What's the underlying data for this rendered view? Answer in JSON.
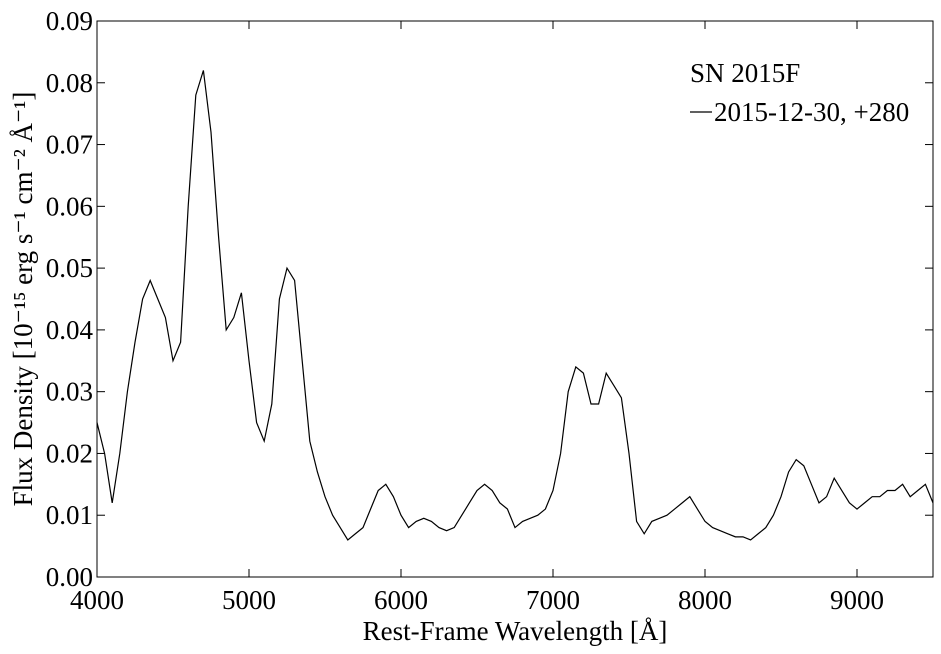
{
  "chart_data": {
    "type": "line",
    "xlabel": "Rest-Frame Wavelength [Å]",
    "ylabel": "Flux Density [10⁻¹⁵ erg s⁻¹ cm⁻² Å⁻¹]",
    "legend_title": "SN 2015F",
    "legend_position": "upper right",
    "xlim": [
      4000,
      9500
    ],
    "xticks": [
      4000,
      5000,
      6000,
      7000,
      8000,
      9000
    ],
    "ylim": [
      0,
      0.09
    ],
    "yticks": [
      {
        "value": 0,
        "label": "0.00"
      },
      0.01,
      0.02,
      0.03,
      0.04,
      0.05,
      0.06,
      0.07,
      0.08,
      0.09
    ],
    "x": [
      4000,
      4050,
      4100,
      4150,
      4200,
      4250,
      4300,
      4350,
      4400,
      4450,
      4500,
      4550,
      4600,
      4650,
      4700,
      4750,
      4800,
      4850,
      4900,
      4950,
      5000,
      5050,
      5100,
      5150,
      5200,
      5250,
      5300,
      5350,
      5400,
      5450,
      5500,
      5550,
      5600,
      5650,
      5700,
      5750,
      5800,
      5850,
      5900,
      5950,
      6000,
      6050,
      6100,
      6150,
      6200,
      6250,
      6300,
      6350,
      6400,
      6450,
      6500,
      6550,
      6600,
      6650,
      6700,
      6750,
      6800,
      6850,
      6900,
      6950,
      7000,
      7050,
      7100,
      7150,
      7200,
      7250,
      7300,
      7350,
      7400,
      7450,
      7500,
      7550,
      7600,
      7650,
      7700,
      7750,
      7800,
      7850,
      7900,
      7950,
      8000,
      8050,
      8100,
      8150,
      8200,
      8250,
      8300,
      8350,
      8400,
      8450,
      8500,
      8550,
      8600,
      8650,
      8700,
      8750,
      8800,
      8850,
      8900,
      8950,
      9000,
      9050,
      9100,
      9150,
      9200,
      9250,
      9300,
      9350,
      9400,
      9450,
      9500
    ],
    "series": [
      {
        "name": "2015-12-30, +280",
        "color": "#000000",
        "values": [
          0.025,
          0.02,
          0.012,
          0.02,
          0.03,
          0.038,
          0.045,
          0.048,
          0.045,
          0.042,
          0.035,
          0.038,
          0.06,
          0.078,
          0.082,
          0.072,
          0.055,
          0.04,
          0.042,
          0.046,
          0.035,
          0.025,
          0.022,
          0.028,
          0.045,
          0.05,
          0.048,
          0.035,
          0.022,
          0.017,
          0.013,
          0.01,
          0.008,
          0.006,
          0.007,
          0.008,
          0.011,
          0.014,
          0.015,
          0.013,
          0.01,
          0.008,
          0.009,
          0.0095,
          0.009,
          0.008,
          0.0075,
          0.008,
          0.01,
          0.012,
          0.014,
          0.015,
          0.014,
          0.012,
          0.011,
          0.008,
          0.009,
          0.0095,
          0.01,
          0.011,
          0.014,
          0.02,
          0.03,
          0.034,
          0.033,
          0.028,
          0.028,
          0.033,
          0.031,
          0.029,
          0.02,
          0.009,
          0.007,
          0.009,
          0.0095,
          0.01,
          0.011,
          0.012,
          0.013,
          0.011,
          0.009,
          0.008,
          0.0075,
          0.007,
          0.0065,
          0.0065,
          0.006,
          0.007,
          0.008,
          0.01,
          0.013,
          0.017,
          0.019,
          0.018,
          0.015,
          0.012,
          0.013,
          0.016,
          0.014,
          0.012,
          0.011,
          0.012,
          0.013,
          0.013,
          0.014,
          0.014,
          0.015,
          0.013,
          0.014,
          0.015,
          0.012
        ]
      }
    ]
  }
}
